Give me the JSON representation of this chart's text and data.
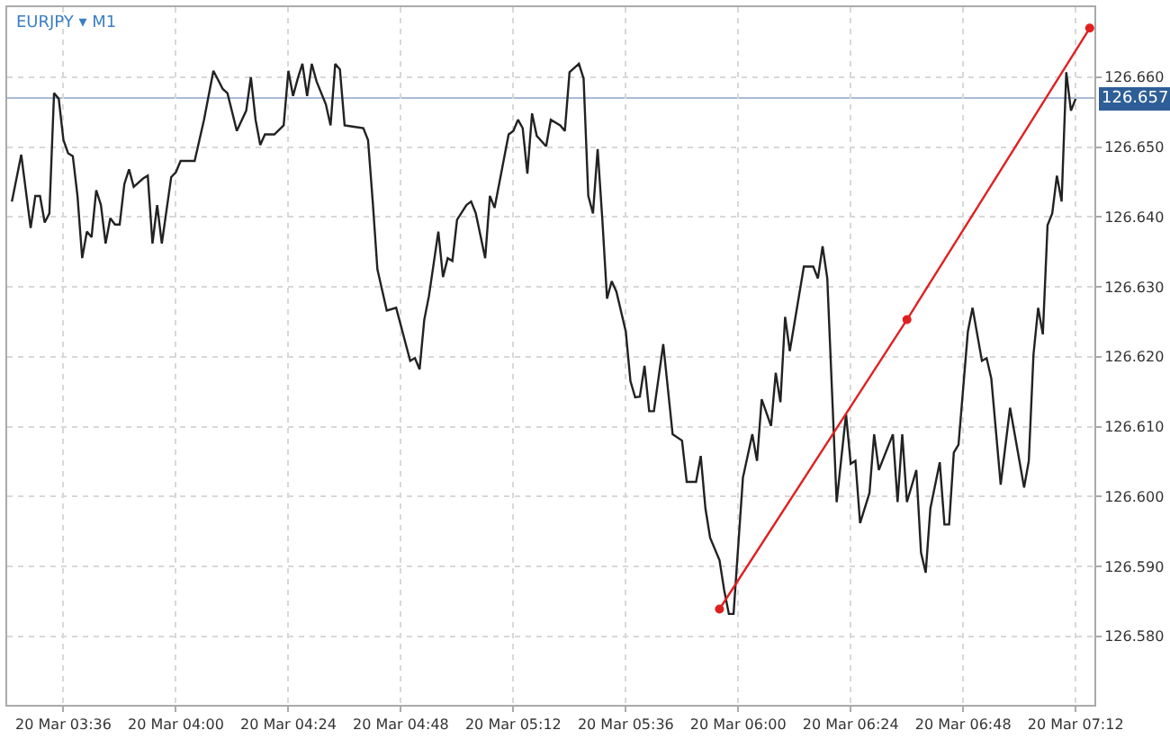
{
  "chart_data": {
    "type": "line",
    "title": "EURJPY ▾ M1",
    "xlim": [
      "--03-20T03:24",
      "--03-20T07:16"
    ],
    "ylim": [
      126.5702,
      126.67
    ],
    "xticks": [
      {
        "value": "--03-20T03:36",
        "label": "20 Mar 03:36"
      },
      {
        "value": "--03-20T04:00",
        "label": "20 Mar 04:00"
      },
      {
        "value": "--03-20T04:24",
        "label": "20 Mar 04:24"
      },
      {
        "value": "--03-20T04:48",
        "label": "20 Mar 04:48"
      },
      {
        "value": "--03-20T05:12",
        "label": "20 Mar 05:12"
      },
      {
        "value": "--03-20T05:36",
        "label": "20 Mar 05:36"
      },
      {
        "value": "--03-20T06:00",
        "label": "20 Mar 06:00"
      },
      {
        "value": "--03-20T06:24",
        "label": "20 Mar 06:24"
      },
      {
        "value": "--03-20T06:48",
        "label": "20 Mar 06:48"
      },
      {
        "value": "--03-20T07:12",
        "label": "20 Mar 07:12"
      }
    ],
    "yticks": [
      {
        "value": 126.58,
        "label": "126.580"
      },
      {
        "value": 126.59,
        "label": "126.590"
      },
      {
        "value": 126.6,
        "label": "126.600"
      },
      {
        "value": 126.61,
        "label": "126.610"
      },
      {
        "value": 126.62,
        "label": "126.620"
      },
      {
        "value": 126.63,
        "label": "126.630"
      },
      {
        "value": 126.64,
        "label": "126.640"
      },
      {
        "value": 126.65,
        "label": "126.650"
      },
      {
        "value": 126.66,
        "label": "126.660"
      }
    ],
    "grid": true,
    "ref_lines": [
      {
        "axis": "y",
        "value": 126.657,
        "label": "126.657",
        "color": "#a9bbd9"
      }
    ],
    "series": [
      {
        "color": "#222222",
        "marker": "none",
        "x": [
          "--03-20T03:25",
          "--03-20T03:27",
          "--03-20T03:29",
          "--03-20T03:30",
          "--03-20T03:31",
          "--03-20T03:32",
          "--03-20T03:33",
          "--03-20T03:34",
          "--03-20T03:35",
          "--03-20T03:36",
          "--03-20T03:37",
          "--03-20T03:38",
          "--03-20T03:39",
          "--03-20T03:40",
          "--03-20T03:41",
          "--03-20T03:42",
          "--03-20T03:43",
          "--03-20T03:44",
          "--03-20T03:45",
          "--03-20T03:46",
          "--03-20T03:47",
          "--03-20T03:48",
          "--03-20T03:49",
          "--03-20T03:50",
          "--03-20T03:51",
          "--03-20T03:53",
          "--03-20T03:54",
          "--03-20T03:55",
          "--03-20T03:56",
          "--03-20T03:57",
          "--03-20T03:59",
          "--03-20T04:00",
          "--03-20T04:01",
          "--03-20T04:04",
          "--03-20T04:06",
          "--03-20T04:08",
          "--03-20T04:10",
          "--03-20T04:11",
          "--03-20T04:13",
          "--03-20T04:15",
          "--03-20T04:16",
          "--03-20T04:17",
          "--03-20T04:18",
          "--03-20T04:19",
          "--03-20T04:21",
          "--03-20T04:23",
          "--03-20T04:24",
          "--03-20T04:25",
          "--03-20T04:26",
          "--03-20T04:27",
          "--03-20T04:28",
          "--03-20T04:29",
          "--03-20T04:30",
          "--03-20T04:32",
          "--03-20T04:33",
          "--03-20T04:34",
          "--03-20T04:35",
          "--03-20T04:36",
          "--03-20T04:38",
          "--03-20T04:40",
          "--03-20T04:41",
          "--03-20T04:42",
          "--03-20T04:43",
          "--03-20T04:45",
          "--03-20T04:47",
          "--03-20T04:50",
          "--03-20T04:51",
          "--03-20T04:52",
          "--03-20T04:53",
          "--03-20T04:54",
          "--03-20T04:56",
          "--03-20T04:57",
          "--03-20T04:58",
          "--03-20T04:59",
          "--03-20T05:00",
          "--03-20T05:02",
          "--03-20T05:03",
          "--03-20T05:04",
          "--03-20T05:06",
          "--03-20T05:07",
          "--03-20T05:08",
          "--03-20T05:11",
          "--03-20T05:12",
          "--03-20T05:13",
          "--03-20T05:14",
          "--03-20T05:15",
          "--03-20T05:16",
          "--03-20T05:17",
          "--03-20T05:19",
          "--03-20T05:20",
          "--03-20T05:22",
          "--03-20T05:23",
          "--03-20T05:24",
          "--03-20T05:26",
          "--03-20T05:27",
          "--03-20T05:28",
          "--03-20T05:29",
          "--03-20T05:30",
          "--03-20T05:31",
          "--03-20T05:32",
          "--03-20T05:33",
          "--03-20T05:34",
          "--03-20T05:36",
          "--03-20T05:37",
          "--03-20T05:38",
          "--03-20T05:39",
          "--03-20T05:40",
          "--03-20T05:41",
          "--03-20T05:42",
          "--03-20T05:44",
          "--03-20T05:46",
          "--03-20T05:48",
          "--03-20T05:49",
          "--03-20T05:51",
          "--03-20T05:52",
          "--03-20T05:53",
          "--03-20T05:54",
          "--03-20T05:56",
          "--03-20T05:57",
          "--03-20T05:58",
          "--03-20T05:59",
          "--03-20T06:01",
          "--03-20T06:03",
          "--03-20T06:04",
          "--03-20T06:05",
          "--03-20T06:07",
          "--03-20T06:08",
          "--03-20T06:09",
          "--03-20T06:10",
          "--03-20T06:11",
          "--03-20T06:14",
          "--03-20T06:16",
          "--03-20T06:17",
          "--03-20T06:18",
          "--03-20T06:19",
          "--03-20T06:21",
          "--03-20T06:23",
          "--03-20T06:24",
          "--03-20T06:25",
          "--03-20T06:26",
          "--03-20T06:28",
          "--03-20T06:29",
          "--03-20T06:30",
          "--03-20T06:33",
          "--03-20T06:34",
          "--03-20T06:35",
          "--03-20T06:36",
          "--03-20T06:38",
          "--03-20T06:39",
          "--03-20T06:40",
          "--03-20T06:41",
          "--03-20T06:43",
          "--03-20T06:44",
          "--03-20T06:45",
          "--03-20T06:46",
          "--03-20T06:47",
          "--03-20T06:49",
          "--03-20T06:50",
          "--03-20T06:51",
          "--03-20T06:52",
          "--03-20T06:53",
          "--03-20T06:54",
          "--03-20T06:56",
          "--03-20T06:58",
          "--03-20T07:01",
          "--03-20T07:02",
          "--03-20T07:03",
          "--03-20T07:04",
          "--03-20T07:05",
          "--03-20T07:06",
          "--03-20T07:07",
          "--03-20T07:08",
          "--03-20T07:09",
          "--03-20T07:10",
          "--03-20T07:11",
          "--03-20T07:12"
        ],
        "values": [
          126.6422,
          126.6489,
          126.6384,
          126.643,
          126.643,
          126.6392,
          126.6405,
          126.6577,
          126.6569,
          126.651,
          126.6491,
          126.6487,
          126.643,
          126.6341,
          126.6379,
          126.6371,
          126.6438,
          126.6417,
          126.6362,
          126.6398,
          126.6389,
          126.6389,
          126.6447,
          126.6468,
          126.6443,
          126.6455,
          126.6459,
          126.6362,
          126.6417,
          126.6362,
          126.6457,
          126.6464,
          126.648,
          126.648,
          126.6539,
          126.6609,
          126.6583,
          126.6577,
          126.6523,
          126.6552,
          126.66,
          126.6539,
          126.6503,
          126.6518,
          126.6518,
          126.6531,
          126.6609,
          126.6573,
          126.6598,
          126.6619,
          126.6573,
          126.6619,
          126.6594,
          126.6561,
          126.6531,
          126.6619,
          126.6611,
          126.6531,
          126.6529,
          126.6527,
          126.651,
          126.6422,
          126.6325,
          126.6266,
          126.627,
          126.6194,
          126.6198,
          126.6182,
          126.6253,
          126.6287,
          126.6379,
          126.6314,
          126.6341,
          126.6337,
          126.6396,
          126.6417,
          126.6422,
          126.6405,
          126.6341,
          126.643,
          126.6413,
          126.6518,
          126.6523,
          126.6539,
          126.6527,
          126.6462,
          126.6548,
          126.6516,
          126.6501,
          126.6539,
          126.6531,
          126.6523,
          126.6607,
          126.6619,
          126.6598,
          126.643,
          126.6405,
          126.6497,
          126.6396,
          126.6283,
          126.6308,
          126.6293,
          126.6236,
          126.6165,
          126.6142,
          126.6143,
          126.6187,
          126.6122,
          126.6122,
          126.6218,
          126.6089,
          126.608,
          126.6021,
          126.6021,
          126.6058,
          126.5983,
          126.5941,
          126.5909,
          126.5866,
          126.5832,
          126.5832,
          126.6027,
          126.6089,
          126.6051,
          126.6139,
          126.6101,
          126.6177,
          126.6135,
          126.6257,
          126.6208,
          126.6329,
          126.6329,
          126.6312,
          126.6358,
          126.6312,
          126.5992,
          126.6118,
          126.6047,
          126.6051,
          126.5962,
          126.6005,
          126.6089,
          126.6038,
          126.6089,
          126.5992,
          126.6089,
          126.5992,
          126.6038,
          126.592,
          126.5891,
          126.5983,
          126.6049,
          126.596,
          126.596,
          126.6063,
          126.6074,
          126.6236,
          126.627,
          126.6232,
          126.6194,
          126.6198,
          126.6169,
          126.6017,
          126.6127,
          126.6013,
          126.6051,
          126.6203,
          126.627,
          126.6232,
          126.6388,
          126.6405,
          126.6459,
          126.6422,
          126.6607,
          126.6552,
          126.6569
        ]
      },
      {
        "color": "#e02020",
        "marker": "circle",
        "x": [
          "--03-20T05:56",
          "--03-20T06:36",
          "--03-20T07:15"
        ],
        "values": [
          126.5839,
          126.6253,
          126.667
        ]
      }
    ]
  }
}
